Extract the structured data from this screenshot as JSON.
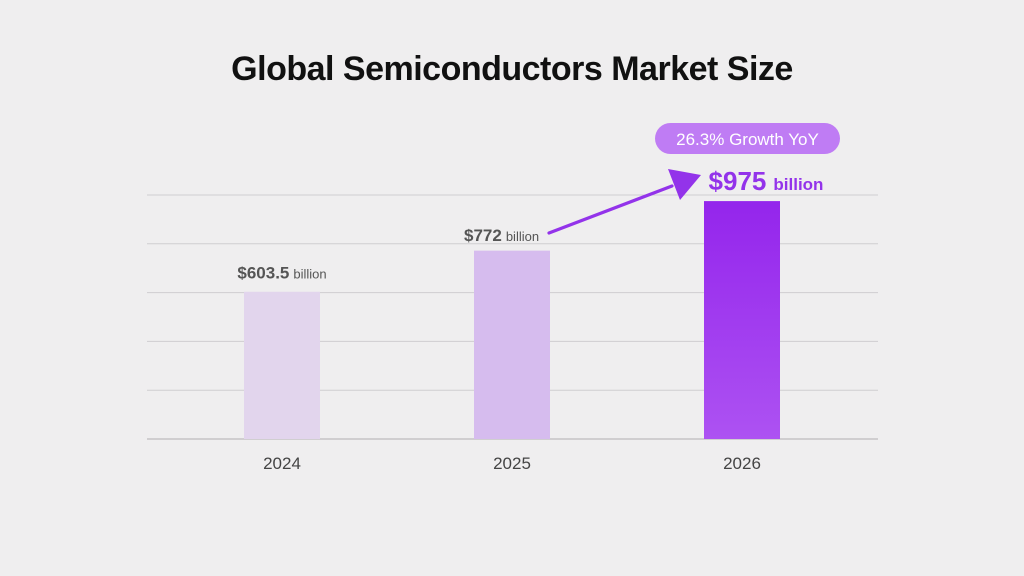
{
  "chart_data": {
    "type": "bar",
    "title": "Global Semiconductors Market Size",
    "categories": [
      "2024",
      "2025",
      "2026"
    ],
    "values": [
      603.5,
      772,
      975
    ],
    "value_labels": [
      {
        "amount": "$603.5",
        "unit": "billion"
      },
      {
        "amount": "$772",
        "unit": "billion"
      },
      {
        "amount": "$975",
        "unit": "billion"
      }
    ],
    "unit": "billion USD",
    "xlabel": "",
    "ylabel": "",
    "ylim": [
      0,
      1000
    ],
    "grid": true,
    "annotation": {
      "text": "26.3% Growth YoY",
      "from_category": "2025",
      "to_category": "2026"
    },
    "colors": {
      "2024": "#e2d5ed",
      "2025": "#d6bcee",
      "2026_top": "#9425ec",
      "2026_bottom": "#ad52f2",
      "highlight_text": "#9333ea",
      "badge_fill": "#bf7cf4",
      "arrow": "#9333ea"
    }
  }
}
